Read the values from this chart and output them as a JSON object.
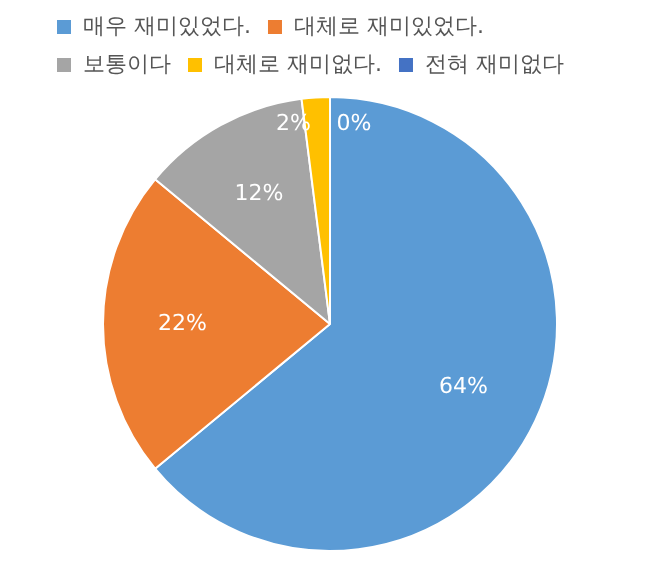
{
  "chart_data": {
    "type": "pie",
    "categories": [
      "매우 재미있었다.",
      "대체로 재미있었다.",
      "보통이다",
      "대체로 재미없다.",
      "전혀 재미없다"
    ],
    "values": [
      64,
      22,
      12,
      2,
      0
    ],
    "colors": [
      "#5b9bd5",
      "#ed7d31",
      "#a5a5a5",
      "#ffc000",
      "#4472c4"
    ],
    "value_labels": [
      "64%",
      "22%",
      "12%",
      "2%",
      "0%"
    ],
    "legend": "top"
  }
}
